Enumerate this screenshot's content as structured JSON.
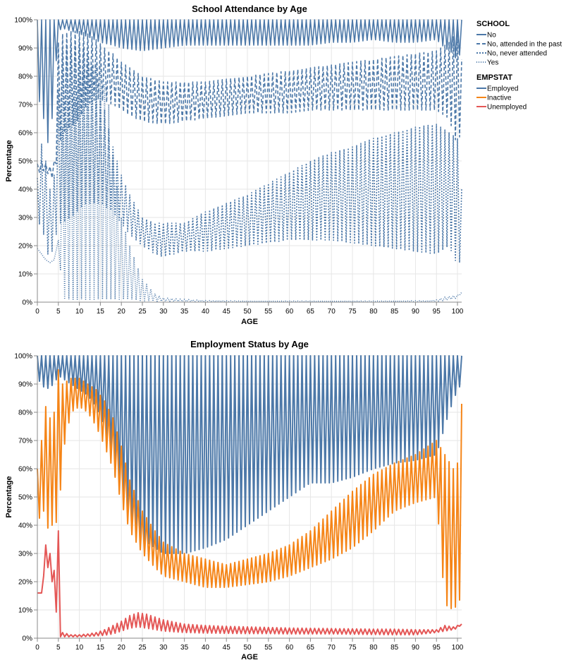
{
  "chart_data": [
    {
      "type": "line",
      "title": "School Attendance by Age",
      "xlabel": "AGE",
      "ylabel": "Percentage",
      "xlim": [
        0,
        101
      ],
      "ylim": [
        0,
        100
      ],
      "x_ticks": [
        0,
        5,
        10,
        15,
        20,
        25,
        30,
        35,
        40,
        45,
        50,
        55,
        60,
        65,
        70,
        75,
        80,
        85,
        90,
        95,
        100
      ],
      "y_ticks": [
        "0%",
        "10%",
        "20%",
        "30%",
        "40%",
        "50%",
        "60%",
        "70%",
        "80%",
        "90%",
        "100%"
      ],
      "grid": true,
      "legend_placement": "right",
      "legend_title": "SCHOOL",
      "series": [
        {
          "name": "No",
          "color": "#4c78a8",
          "dash": "solid",
          "x": [
            0,
            1,
            2,
            3,
            4,
            5,
            6,
            8,
            10,
            12,
            15,
            18,
            20,
            25,
            30,
            35,
            40,
            45,
            50,
            55,
            60,
            65,
            70,
            75,
            80,
            85,
            90,
            95,
            97,
            99,
            100,
            101
          ],
          "lows": [
            70,
            72,
            58,
            55,
            75,
            96,
            97,
            96,
            95,
            94,
            92,
            91,
            90,
            89,
            90,
            91,
            91,
            91,
            91,
            91,
            91,
            91,
            92,
            92,
            93,
            92,
            92,
            93,
            90,
            88,
            85,
            90
          ],
          "highs": [
            100,
            100,
            100,
            100,
            100,
            100,
            100,
            100,
            100,
            100,
            100,
            100,
            100,
            100,
            100,
            100,
            100,
            100,
            100,
            100,
            100,
            100,
            100,
            100,
            100,
            100,
            100,
            100,
            100,
            100,
            100,
            100
          ]
        },
        {
          "name": "No, attended in the past",
          "color": "#4c78a8",
          "dash": "5,3",
          "x": [
            0,
            1,
            2,
            3,
            4,
            5,
            6,
            8,
            10,
            12,
            14,
            16,
            18,
            20,
            22,
            25,
            30,
            35,
            40,
            45,
            50,
            55,
            60,
            65,
            70,
            75,
            80,
            85,
            90,
            95,
            98,
            100,
            101
          ],
          "lows": [
            45,
            47,
            46,
            45,
            43,
            55,
            60,
            62,
            65,
            70,
            72,
            71,
            70,
            68,
            66,
            64,
            63,
            64,
            65,
            66,
            67,
            67,
            67,
            68,
            68,
            68,
            68,
            68,
            68,
            68,
            65,
            55,
            62
          ],
          "highs": [
            49,
            50,
            49,
            48,
            50,
            92,
            95,
            96,
            96,
            95,
            93,
            90,
            88,
            85,
            83,
            80,
            78,
            78,
            78,
            79,
            80,
            81,
            82,
            83,
            84,
            85,
            86,
            87,
            88,
            89,
            92,
            96,
            86
          ]
        },
        {
          "name": "No, never attended",
          "color": "#4c78a8",
          "dash": "2,2",
          "x": [
            0,
            1,
            2,
            3,
            4,
            5,
            6,
            8,
            10,
            12,
            15,
            18,
            20,
            22,
            25,
            28,
            30,
            35,
            40,
            45,
            50,
            55,
            60,
            65,
            70,
            75,
            80,
            85,
            90,
            95,
            98,
            100,
            101
          ],
          "lows": [
            25,
            30,
            18,
            16,
            20,
            28,
            28,
            30,
            33,
            35,
            35,
            32,
            28,
            24,
            20,
            17,
            16,
            18,
            18,
            19,
            20,
            21,
            22,
            22,
            22,
            21,
            20,
            19,
            18,
            17,
            20,
            13,
            15
          ],
          "highs": [
            44,
            56,
            50,
            40,
            45,
            75,
            90,
            92,
            92,
            88,
            75,
            55,
            45,
            38,
            30,
            28,
            28,
            28,
            32,
            35,
            38,
            42,
            46,
            50,
            53,
            55,
            58,
            60,
            62,
            63,
            60,
            58,
            40
          ]
        },
        {
          "name": "Yes",
          "color": "#4c78a8",
          "dash": "1,2",
          "x": [
            0,
            1,
            2,
            3,
            4,
            5,
            6,
            8,
            10,
            12,
            15,
            17,
            18,
            20,
            22,
            25,
            28,
            30,
            35,
            40,
            50,
            60,
            70,
            80,
            90,
            93,
            95,
            97,
            100,
            101
          ],
          "lows": [
            19,
            17,
            15,
            14,
            15,
            22,
            1,
            1,
            1,
            1,
            1,
            1,
            1,
            1,
            1,
            0.5,
            0.3,
            0.3,
            0.2,
            0.2,
            0.2,
            0.2,
            0.2,
            0.2,
            0.2,
            0.2,
            0.3,
            0.6,
            1.5,
            3.5
          ],
          "highs": [
            19,
            17,
            15,
            14,
            15,
            22,
            62,
            65,
            78,
            85,
            84,
            70,
            52,
            30,
            20,
            8,
            3,
            1.5,
            1,
            0.6,
            0.4,
            0.4,
            0.4,
            0.4,
            0.5,
            0.5,
            0.8,
            1.8,
            2.5,
            3.5
          ]
        }
      ]
    },
    {
      "type": "line",
      "title": "Employment Status by Age",
      "xlabel": "AGE",
      "ylabel": "Percentage",
      "xlim": [
        0,
        101
      ],
      "ylim": [
        0,
        100
      ],
      "x_ticks": [
        0,
        5,
        10,
        15,
        20,
        25,
        30,
        35,
        40,
        45,
        50,
        55,
        60,
        65,
        70,
        75,
        80,
        85,
        90,
        95,
        100
      ],
      "y_ticks": [
        "0%",
        "10%",
        "20%",
        "30%",
        "40%",
        "50%",
        "60%",
        "70%",
        "80%",
        "90%",
        "100%"
      ],
      "grid": true,
      "legend_placement": "right",
      "legend_title": "EMPSTAT",
      "series": [
        {
          "name": "Employed",
          "color": "#4c78a8",
          "x": [
            0,
            2,
            4,
            5,
            8,
            10,
            12,
            14,
            16,
            18,
            20,
            22,
            25,
            28,
            30,
            35,
            40,
            45,
            50,
            55,
            60,
            65,
            70,
            75,
            80,
            85,
            90,
            95,
            98,
            100,
            101
          ],
          "lows": [
            92,
            88,
            90,
            93,
            90,
            88,
            86,
            82,
            75,
            60,
            50,
            40,
            35,
            32,
            30,
            30,
            32,
            35,
            40,
            45,
            50,
            55,
            55,
            57,
            60,
            62,
            63,
            65,
            80,
            88,
            90
          ],
          "highs": [
            100,
            100,
            100,
            100,
            100,
            100,
            100,
            100,
            100,
            100,
            100,
            100,
            100,
            100,
            100,
            100,
            100,
            100,
            100,
            100,
            100,
            100,
            100,
            100,
            100,
            100,
            100,
            100,
            100,
            100,
            100
          ]
        },
        {
          "name": "Inactive",
          "color": "#f58518",
          "x": [
            0,
            1,
            2,
            3,
            4,
            5,
            6,
            8,
            10,
            12,
            14,
            16,
            18,
            20,
            22,
            25,
            28,
            30,
            35,
            40,
            45,
            50,
            55,
            60,
            65,
            70,
            75,
            80,
            85,
            90,
            95,
            97,
            99,
            100,
            101
          ],
          "lows": [
            35,
            50,
            40,
            38,
            42,
            40,
            65,
            80,
            82,
            80,
            75,
            68,
            60,
            48,
            38,
            30,
            25,
            22,
            20,
            18,
            18,
            19,
            20,
            22,
            25,
            28,
            32,
            38,
            45,
            48,
            50,
            12,
            10,
            12,
            15
          ],
          "highs": [
            60,
            70,
            82,
            78,
            80,
            95,
            90,
            92,
            92,
            90,
            88,
            84,
            78,
            68,
            56,
            45,
            38,
            34,
            30,
            28,
            26,
            28,
            30,
            33,
            38,
            45,
            52,
            58,
            62,
            65,
            70,
            65,
            60,
            62,
            83
          ]
        },
        {
          "name": "Unemployed",
          "color": "#e45756",
          "x": [
            0,
            1,
            2,
            3,
            4,
            5,
            6,
            8,
            10,
            12,
            14,
            16,
            18,
            20,
            22,
            24,
            26,
            28,
            30,
            35,
            40,
            45,
            50,
            55,
            60,
            65,
            70,
            75,
            80,
            85,
            90,
            95,
            97,
            99,
            100,
            101
          ],
          "lows": [
            16,
            16,
            28,
            22,
            18,
            0.5,
            0.5,
            0.5,
            0.5,
            0.6,
            0.8,
            1,
            1.5,
            2.5,
            3.5,
            4,
            3.5,
            3,
            2.5,
            2,
            1.8,
            1.7,
            1.6,
            1.6,
            1.5,
            1.5,
            1.5,
            1.4,
            1.3,
            1.2,
            1.2,
            2,
            2.5,
            3,
            3.5,
            5
          ],
          "highs": [
            16,
            16,
            33,
            30,
            24,
            38,
            2,
            1.2,
            1.2,
            1.5,
            2,
            3,
            4.5,
            6,
            8,
            9,
            8.5,
            7.5,
            6.5,
            5,
            4.5,
            4.2,
            4,
            3.8,
            3.6,
            3.5,
            3.4,
            3.3,
            3.2,
            3.2,
            3,
            3,
            4.5,
            4,
            4.5,
            5
          ]
        }
      ]
    }
  ]
}
